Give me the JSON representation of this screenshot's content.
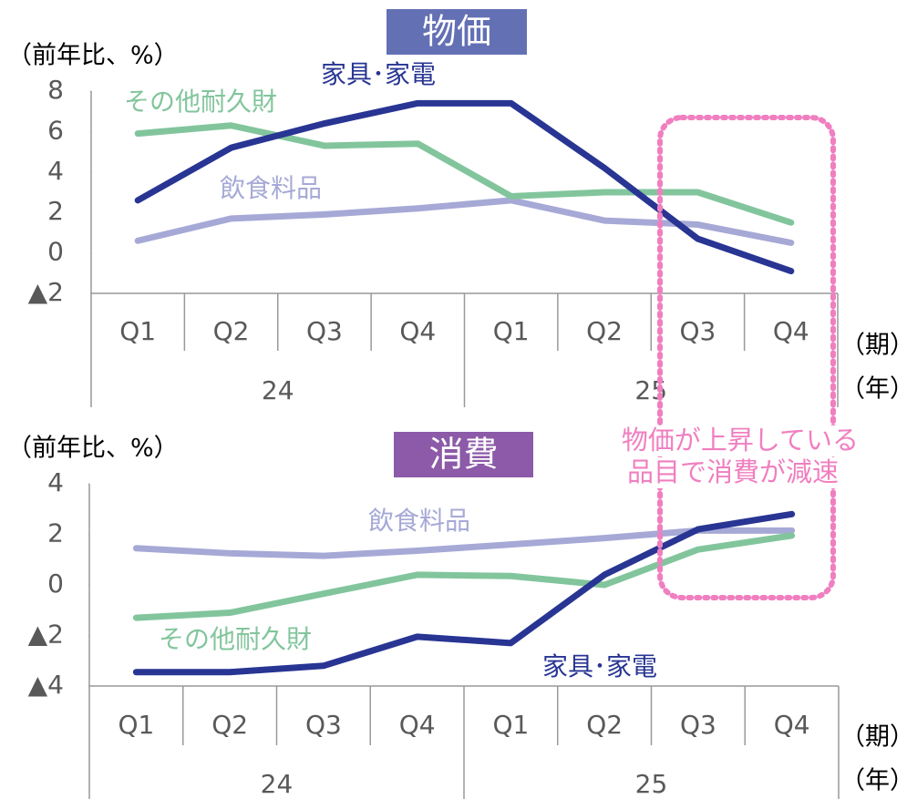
{
  "chart_data": [
    {
      "type": "line",
      "title": "物価",
      "title_color": "#6470b4",
      "y_label": "（前年比、%）",
      "categories": [
        "Q1",
        "Q2",
        "Q3",
        "Q4",
        "Q1",
        "Q2",
        "Q3",
        "Q4"
      ],
      "years": [
        "24",
        "25"
      ],
      "period_label": "（期）",
      "year_label": "（年）",
      "ylim": [
        -2,
        8
      ],
      "yticks": [
        {
          "value": -2,
          "label": "▲2"
        },
        0,
        2,
        4,
        6,
        8
      ],
      "series": [
        {
          "name": "家具･家電",
          "color": "#283593",
          "values": [
            2.6,
            5.2,
            6.4,
            7.4,
            7.4,
            4.2,
            0.7,
            -0.9
          ]
        },
        {
          "name": "その他耐久財",
          "color": "#82c59c",
          "values": [
            5.9,
            6.3,
            5.3,
            5.4,
            2.8,
            3.0,
            3.0,
            1.5
          ]
        },
        {
          "name": "飲食料品",
          "color": "#a6a9d6",
          "values": [
            0.6,
            1.7,
            1.9,
            2.2,
            2.6,
            1.6,
            1.4,
            0.5
          ]
        }
      ]
    },
    {
      "type": "line",
      "title": "消費",
      "title_color": "#8c5aa8",
      "y_label": "（前年比、%）",
      "categories": [
        "Q1",
        "Q2",
        "Q3",
        "Q4",
        "Q1",
        "Q2",
        "Q3",
        "Q4"
      ],
      "years": [
        "24",
        "25"
      ],
      "period_label": "（期）",
      "year_label": "（年）",
      "ylim": [
        -4,
        4
      ],
      "yticks": [
        {
          "value": -4,
          "label": "▲4"
        },
        {
          "value": -2,
          "label": "▲2"
        },
        0,
        2,
        4
      ],
      "series": [
        {
          "name": "家具･家電",
          "color": "#283593",
          "values": [
            -3.45,
            -3.45,
            -3.2,
            -2.05,
            -2.3,
            0.4,
            2.2,
            2.8
          ]
        },
        {
          "name": "その他耐久財",
          "color": "#82c59c",
          "values": [
            -1.3,
            -1.1,
            -0.35,
            0.4,
            0.35,
            0.0,
            1.4,
            1.95
          ]
        },
        {
          "name": "飲食料品",
          "color": "#a6a9d6",
          "values": [
            1.45,
            1.25,
            1.15,
            1.35,
            1.6,
            1.85,
            2.15,
            2.15
          ]
        }
      ]
    }
  ],
  "annotation": {
    "lines": [
      "物価が上昇している",
      "品目で消費が減速"
    ],
    "color": "#f07fc0"
  }
}
